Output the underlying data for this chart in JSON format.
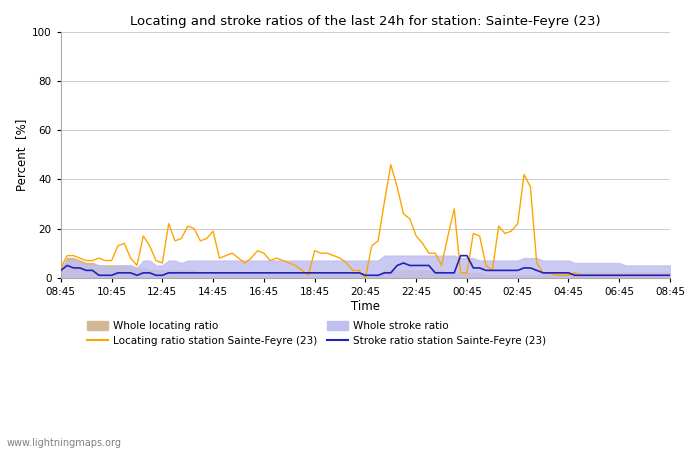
{
  "title": "Locating and stroke ratios of the last 24h for station: Sainte-Feyre (23)",
  "ylabel": "Percent  [%]",
  "xlabel": "Time",
  "ylim": [
    0,
    100
  ],
  "yticks": [
    0,
    20,
    40,
    60,
    80,
    100
  ],
  "xtick_labels": [
    "08:45",
    "10:45",
    "12:45",
    "14:45",
    "16:45",
    "18:45",
    "20:45",
    "22:45",
    "00:45",
    "02:45",
    "04:45",
    "06:45",
    "08:45"
  ],
  "watermark": "www.lightningmaps.org",
  "color_whole_loc": "#d4b896",
  "color_loc_station": "#ffa500",
  "color_whole_stroke": "#c0c0f0",
  "color_stroke_station": "#2222bb",
  "legend_labels": [
    "Whole locating ratio",
    "Locating ratio station Sainte-Feyre (23)",
    "Whole stroke ratio",
    "Stroke ratio station Sainte-Feyre (23)"
  ],
  "whole_locating": [
    3,
    8,
    8,
    7,
    6,
    6,
    5,
    5,
    5,
    5,
    5,
    5,
    4,
    4,
    3,
    3,
    3,
    3,
    3,
    3,
    3,
    3,
    2,
    2,
    2,
    2,
    2,
    2,
    2,
    2,
    2,
    2,
    2,
    2,
    2,
    2,
    2,
    2,
    2,
    2,
    2,
    2,
    2,
    2,
    2,
    2,
    2,
    2,
    0,
    0,
    1,
    3,
    3,
    3,
    3,
    3,
    3,
    3,
    3,
    3,
    3,
    2,
    2,
    2,
    2,
    2,
    2,
    1,
    1,
    1,
    1,
    1,
    1,
    1,
    1,
    1,
    2,
    2,
    2,
    2,
    2,
    2,
    2,
    2,
    2,
    2,
    2,
    2,
    2,
    2,
    2,
    2,
    2,
    2,
    2,
    2,
    2
  ],
  "loc_station": [
    4,
    9,
    9,
    8,
    7,
    7,
    8,
    7,
    7,
    13,
    14,
    8,
    5,
    17,
    13,
    7,
    6,
    22,
    15,
    16,
    21,
    20,
    15,
    16,
    19,
    8,
    9,
    10,
    8,
    6,
    8,
    11,
    10,
    7,
    8,
    7,
    6,
    5,
    3,
    1,
    11,
    10,
    10,
    9,
    8,
    6,
    3,
    3,
    0,
    13,
    15,
    31,
    46,
    37,
    26,
    24,
    17,
    14,
    10,
    10,
    5,
    17,
    28,
    2,
    2,
    18,
    17,
    5,
    3,
    21,
    18,
    19,
    22,
    42,
    37,
    6,
    2,
    2,
    1,
    1,
    1,
    2,
    1,
    1,
    1,
    1,
    1,
    1,
    1,
    1,
    1,
    1,
    1,
    1,
    1,
    1,
    1
  ],
  "whole_stroke": [
    4,
    7,
    7,
    6,
    5,
    5,
    5,
    5,
    4,
    5,
    5,
    5,
    4,
    7,
    7,
    5,
    5,
    7,
    7,
    6,
    7,
    7,
    7,
    7,
    7,
    7,
    7,
    7,
    7,
    7,
    7,
    7,
    7,
    7,
    7,
    7,
    7,
    7,
    7,
    7,
    7,
    7,
    7,
    7,
    7,
    7,
    7,
    7,
    7,
    7,
    7,
    9,
    9,
    9,
    9,
    9,
    9,
    9,
    9,
    9,
    9,
    9,
    9,
    8,
    8,
    8,
    7,
    7,
    7,
    7,
    7,
    7,
    7,
    8,
    8,
    8,
    7,
    7,
    7,
    7,
    7,
    6,
    6,
    6,
    6,
    6,
    6,
    6,
    6,
    5,
    5,
    5,
    5,
    5,
    5,
    5,
    5
  ],
  "stroke_station": [
    3,
    5,
    4,
    4,
    3,
    3,
    1,
    1,
    1,
    2,
    2,
    2,
    1,
    2,
    2,
    1,
    1,
    2,
    2,
    2,
    2,
    2,
    2,
    2,
    2,
    2,
    2,
    2,
    2,
    2,
    2,
    2,
    2,
    2,
    2,
    2,
    2,
    2,
    2,
    2,
    2,
    2,
    2,
    2,
    2,
    2,
    2,
    2,
    1,
    1,
    1,
    2,
    2,
    5,
    6,
    5,
    5,
    5,
    5,
    2,
    2,
    2,
    2,
    9,
    9,
    4,
    4,
    3,
    3,
    3,
    3,
    3,
    3,
    4,
    4,
    3,
    2,
    2,
    2,
    2,
    2,
    1,
    1,
    1,
    1,
    1,
    1,
    1,
    1,
    1,
    1,
    1,
    1,
    1,
    1,
    1,
    1
  ]
}
